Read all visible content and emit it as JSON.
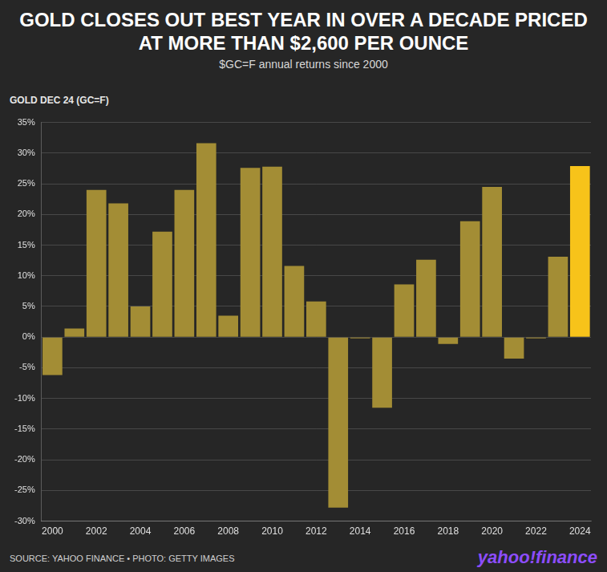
{
  "chart_data": {
    "type": "bar",
    "title": "GOLD CLOSES OUT BEST YEAR IN OVER A DECADE PRICED AT MORE THAN $2,600 PER OUNCE",
    "subtitle": "$GC=F annual returns since 2000",
    "ylabel": "GOLD DEC 24 (GC=F)",
    "annotations": [
      "SOURCE: YAHOO FINANCE • PHOTO: GETTY IMAGES",
      "yahoo!finance"
    ],
    "categories": [
      "2000",
      null,
      "2002",
      null,
      "2004",
      null,
      "2006",
      null,
      "2008",
      null,
      "2010",
      null,
      "2012",
      null,
      "2014",
      null,
      "2016",
      null,
      "2018",
      null,
      "2020",
      null,
      "2022",
      null,
      "2024"
    ],
    "values": [
      -6.2,
      1.4,
      24,
      21.8,
      5,
      17.2,
      24,
      31.6,
      3.5,
      27.6,
      27.8,
      11.6,
      5.8,
      -27.8,
      -0.2,
      -11.5,
      8.6,
      12.6,
      -1.1,
      18.9,
      24.5,
      -3.5,
      -0.2,
      13.1,
      27.9
    ],
    "colors": [
      "#a38d35",
      "#a38d35",
      "#a38d35",
      "#a38d35",
      "#a38d35",
      "#a38d35",
      "#a38d35",
      "#a38d35",
      "#a38d35",
      "#a38d35",
      "#a38d35",
      "#a38d35",
      "#a38d35",
      "#a38d35",
      "#a38d35",
      "#a38d35",
      "#a38d35",
      "#a38d35",
      "#a38d35",
      "#a38d35",
      "#a38d35",
      "#a38d35",
      "#a38d35",
      "#a38d35",
      "#f7c31a"
    ],
    "ylim": [
      -30,
      35
    ],
    "yticks": [
      {
        "value": -30,
        "label": "-30%"
      },
      {
        "value": -25,
        "label": "-25%"
      },
      {
        "value": -20,
        "label": "-20%"
      },
      {
        "value": -15,
        "label": "-15%"
      },
      {
        "value": -10,
        "label": "-10%"
      },
      {
        "value": -5,
        "label": "-5%"
      },
      {
        "value": 0,
        "label": "0%"
      },
      {
        "value": 5,
        "label": "5%"
      },
      {
        "value": 10,
        "label": "10%"
      },
      {
        "value": 15,
        "label": "15%"
      },
      {
        "value": 20,
        "label": "20%"
      },
      {
        "value": 25,
        "label": "25%"
      },
      {
        "value": 30,
        "label": "30%"
      },
      {
        "value": 35,
        "label": "35%"
      }
    ],
    "grid": true
  }
}
